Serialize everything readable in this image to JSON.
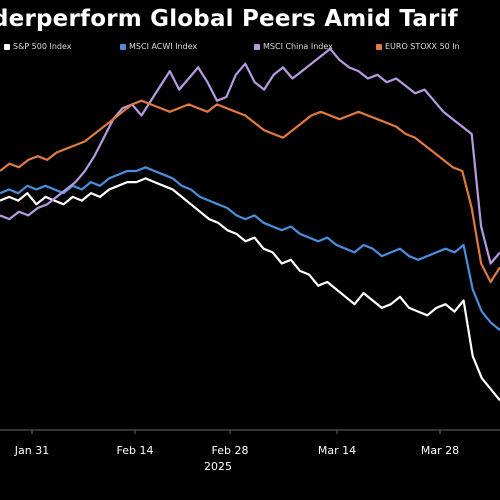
{
  "title": "derperform Global Peers Amid Tarif",
  "chart_data": {
    "type": "line",
    "title": "derperform Global Peers Amid Tarif",
    "year_label": "2025",
    "x_ticks": [
      "Jan 31",
      "Feb 14",
      "Feb 28",
      "Mar 14",
      "Mar 28"
    ],
    "y_range": [
      0,
      100
    ],
    "grid": false,
    "legend_position": "top",
    "series": [
      {
        "name": "S&P 500 Index",
        "color": "#ffffff",
        "values": [
          62,
          63,
          62,
          64,
          61,
          63,
          62,
          61,
          63,
          62,
          64,
          63,
          65,
          66,
          67,
          67,
          68,
          67,
          66,
          65,
          63,
          61,
          59,
          57,
          56,
          54,
          53,
          51,
          52,
          49,
          48,
          45,
          46,
          43,
          42,
          39,
          40,
          38,
          36,
          34,
          37,
          35,
          33,
          34,
          36,
          33,
          32,
          31,
          33,
          34,
          32,
          35,
          20,
          14,
          11,
          8
        ]
      },
      {
        "name": "MSCI ACWI Index",
        "color": "#4a8fdc",
        "values": [
          64,
          65,
          64,
          66,
          65,
          66,
          65,
          64,
          66,
          65,
          67,
          66,
          68,
          69,
          70,
          70,
          71,
          70,
          69,
          68,
          66,
          65,
          63,
          62,
          61,
          60,
          58,
          57,
          58,
          56,
          55,
          54,
          55,
          53,
          52,
          51,
          52,
          50,
          49,
          48,
          50,
          49,
          47,
          48,
          49,
          47,
          46,
          47,
          48,
          49,
          48,
          50,
          38,
          32,
          29,
          27
        ]
      },
      {
        "name": "MSCI China Index",
        "color": "#b79be0",
        "values": [
          58,
          57,
          59,
          58,
          60,
          61,
          63,
          65,
          67,
          70,
          74,
          79,
          84,
          87,
          88,
          85,
          89,
          93,
          97,
          92,
          95,
          98,
          94,
          89,
          90,
          96,
          99,
          94,
          92,
          96,
          98,
          95,
          97,
          99,
          101,
          103,
          100,
          98,
          97,
          95,
          96,
          94,
          95,
          93,
          91,
          92,
          89,
          86,
          84,
          82,
          80,
          55,
          45,
          48
        ]
      },
      {
        "name": "EURO STOXX 50 Index",
        "color": "#e07a3f",
        "values": [
          70,
          72,
          71,
          73,
          74,
          73,
          75,
          76,
          77,
          78,
          80,
          82,
          84,
          86,
          88,
          89,
          88,
          87,
          86,
          87,
          88,
          87,
          86,
          88,
          87,
          86,
          85,
          83,
          81,
          80,
          79,
          81,
          83,
          85,
          86,
          85,
          84,
          85,
          86,
          85,
          84,
          83,
          82,
          80,
          79,
          77,
          75,
          73,
          71,
          70,
          60,
          45,
          40,
          44
        ]
      }
    ]
  },
  "legend": {
    "item1": "S&P 500 Index",
    "item2": "MSCI ACWI Index",
    "item3": "MSCI China Index",
    "item4": "EURO STOXX 50 In"
  },
  "colors": {
    "background": "#000000",
    "text": "#ffffff",
    "axis": "#888888"
  }
}
